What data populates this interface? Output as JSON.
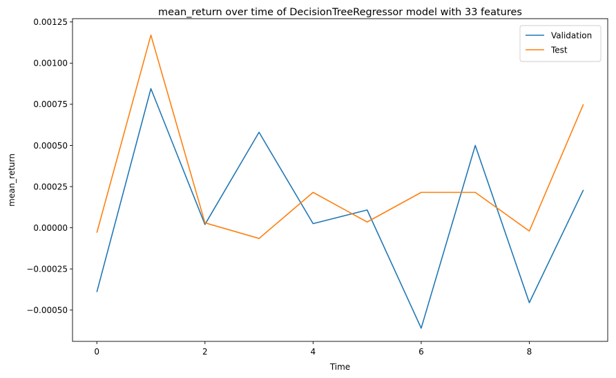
{
  "chart_data": {
    "type": "line",
    "title": "mean_return over time of DecisionTreeRegressor model with 33 features",
    "xlabel": "Time",
    "ylabel": "mean_return",
    "x": [
      0,
      1,
      2,
      3,
      4,
      5,
      6,
      7,
      8,
      9
    ],
    "xticks": [
      0,
      2,
      4,
      6,
      8
    ],
    "xtick_labels": [
      "0",
      "2",
      "4",
      "6",
      "8"
    ],
    "xlim": [
      -0.45,
      9.45
    ],
    "yticks": [
      -0.0005,
      -0.00025,
      0.0,
      0.00025,
      0.0005,
      0.00075,
      0.001,
      0.00125
    ],
    "ytick_labels": [
      "−0.00050",
      "−0.00025",
      "0.00000",
      "0.00025",
      "0.00050",
      "0.00075",
      "0.00100",
      "0.00125"
    ],
    "ylim": [
      -0.00069,
      0.00127
    ],
    "grid": false,
    "legend_position": "top-right",
    "series": [
      {
        "name": "Validation",
        "color": "#1f77b4",
        "values": [
          -0.00039,
          0.000845,
          2e-05,
          0.00058,
          2.5e-05,
          0.000108,
          -0.00061,
          0.0005,
          -0.000455,
          0.00023
        ]
      },
      {
        "name": "Test",
        "color": "#ff7f0e",
        "values": [
          -3e-05,
          0.00117,
          3e-05,
          -6.5e-05,
          0.000215,
          3.5e-05,
          0.000215,
          0.000215,
          -2e-05,
          0.00075
        ]
      }
    ]
  }
}
